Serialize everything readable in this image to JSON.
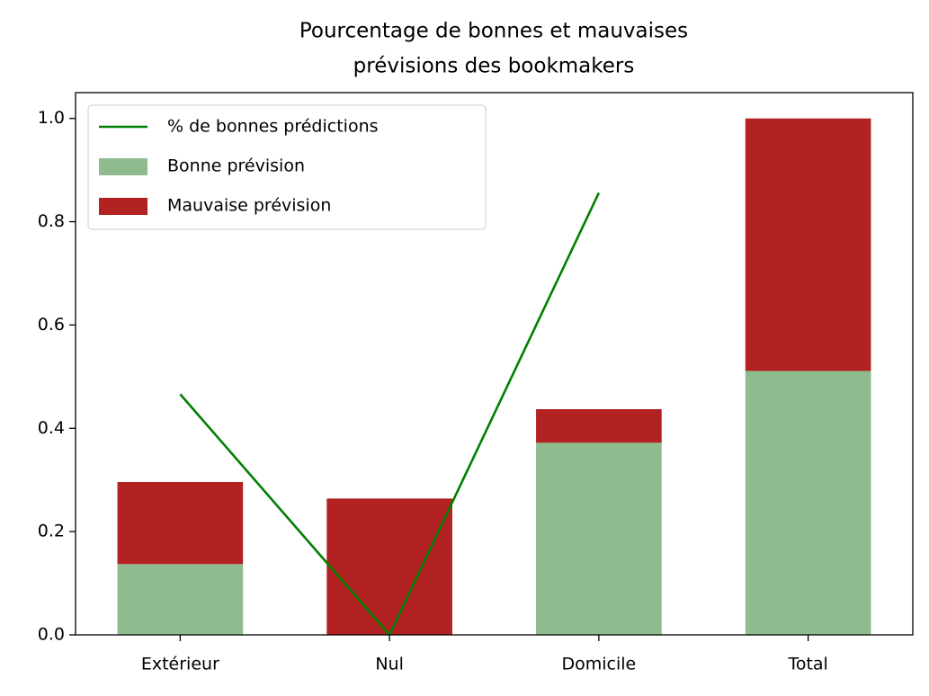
{
  "chart_data": {
    "type": "bar",
    "title": [
      "Pourcentage de bonnes et mauvaises",
      "prévisions des bookmakers"
    ],
    "categories": [
      "Extérieur",
      "Nul",
      "Domicile",
      "Total"
    ],
    "series": [
      {
        "name": "% de bonnes prédictions",
        "kind": "line",
        "color": "#008000",
        "values": [
          0.466,
          0.0,
          0.856,
          null
        ]
      },
      {
        "name": "Bonne prévision",
        "kind": "bar",
        "color": "#8fbc8f",
        "values": [
          0.137,
          0.0,
          0.372,
          0.511
        ]
      },
      {
        "name": "Mauvaise prévision",
        "kind": "bar",
        "color": "#b22222",
        "values": [
          0.159,
          0.264,
          0.065,
          0.489
        ]
      }
    ],
    "ylim": [
      0,
      1.05
    ],
    "yticks": [
      {
        "value": 0,
        "label": "0.0"
      },
      {
        "value": 0.2,
        "label": "0.2"
      },
      {
        "value": 0.4,
        "label": "0.4"
      },
      {
        "value": 0.6,
        "label": "0.6"
      },
      {
        "value": 0.8,
        "label": "0.8"
      },
      {
        "value": 1,
        "label": "1.0"
      }
    ],
    "legend": "upper left"
  }
}
